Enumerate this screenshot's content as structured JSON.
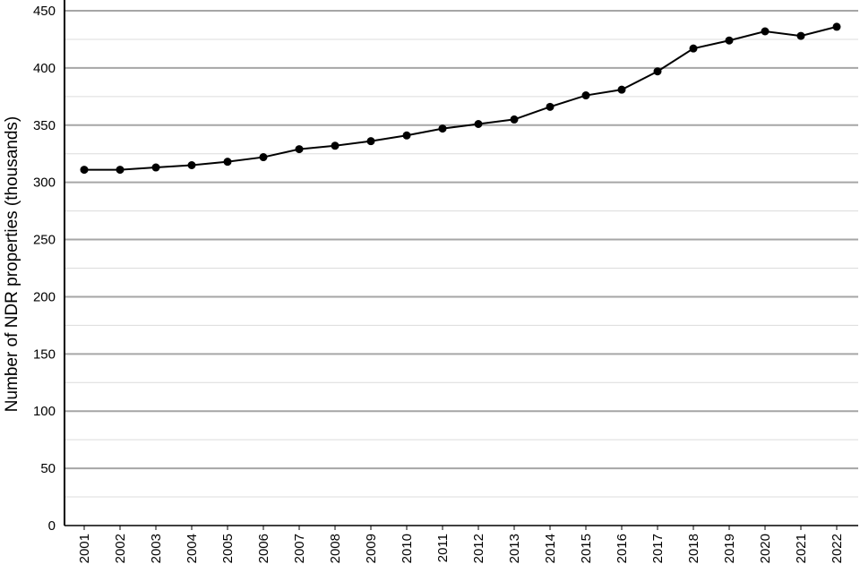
{
  "chart_data": {
    "type": "line",
    "title": "",
    "xlabel": "",
    "ylabel": "Number of NDR properties (thousands)",
    "ylim": [
      0,
      450
    ],
    "yticks": [
      0,
      50,
      100,
      150,
      200,
      250,
      300,
      350,
      400,
      450
    ],
    "minor_grid_step": 25,
    "grid": true,
    "line_color": "#000000",
    "categories": [
      "2001",
      "2002",
      "2003",
      "2004",
      "2005",
      "2006",
      "2007",
      "2008",
      "2009",
      "2010",
      "2011",
      "2012",
      "2013",
      "2014",
      "2015",
      "2016",
      "2017",
      "2018",
      "2019",
      "2020",
      "2021",
      "2022"
    ],
    "series": [
      {
        "values": [
          311,
          311,
          313,
          315,
          318,
          322,
          329,
          332,
          336,
          341,
          347,
          351,
          355,
          366,
          376,
          381,
          397,
          417,
          424,
          432,
          428,
          436
        ]
      }
    ]
  }
}
